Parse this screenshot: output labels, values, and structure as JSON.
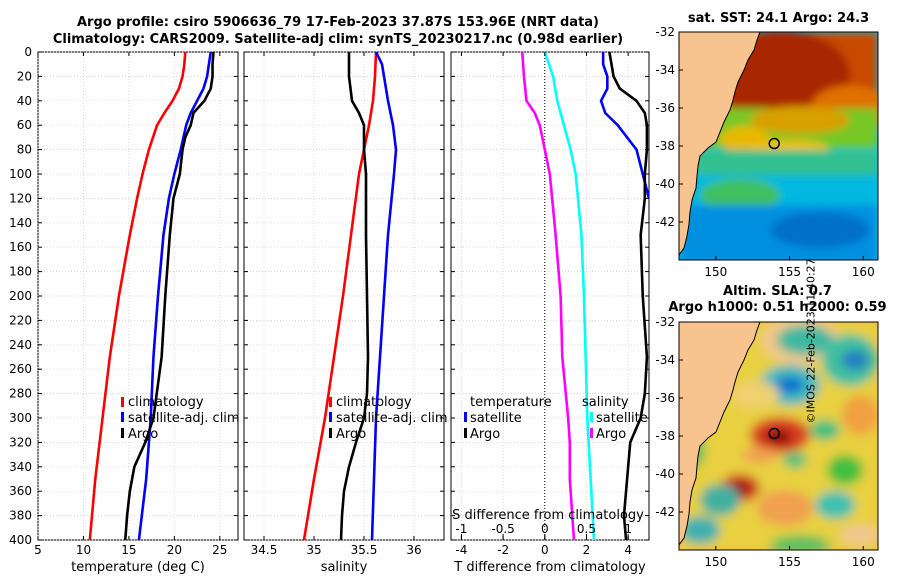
{
  "header": {
    "line1": "Argo profile: csiro 5906636_79 17-Feb-2023 37.87S 153.96E (NRT data)",
    "line2": "Climatology: CARS2009. Satellite-adj clim: synTS_20230217.nc (0.98d earlier)"
  },
  "colors": {
    "climatology": "#ff0000",
    "satellite": "#0000ff",
    "argo": "#000000",
    "salinity_clim_diff": "#ff00ff",
    "salinity_sat_diff": "#00ffff",
    "land": "#f7c48f",
    "grid": "#cccccc"
  },
  "depth_axis": {
    "min": 0,
    "max": 400,
    "ticks": [
      0,
      20,
      40,
      60,
      80,
      100,
      120,
      140,
      160,
      180,
      200,
      220,
      240,
      260,
      280,
      300,
      320,
      340,
      360,
      380,
      400
    ]
  },
  "copyright": "©IMOS 22-Feb-2023 11:40:27",
  "chart_data": [
    {
      "id": "temperature",
      "type": "line",
      "xlabel": "temperature (deg C)",
      "ylabel": "",
      "xlim": [
        5,
        27
      ],
      "xticks": [
        5,
        10,
        15,
        20,
        25
      ],
      "ylim": [
        400,
        0
      ],
      "legend": [
        "climatology",
        "satellite-adj. clim",
        "Argo"
      ],
      "legend_position": "lower-right",
      "series": [
        {
          "name": "climatology",
          "color": "#ff0000",
          "depth": [
            0,
            10,
            20,
            30,
            40,
            50,
            60,
            80,
            100,
            120,
            150,
            200,
            250,
            300,
            350,
            400
          ],
          "values": [
            21.2,
            21.1,
            20.9,
            20.5,
            19.8,
            18.9,
            18.1,
            17.2,
            16.5,
            15.9,
            15.1,
            13.9,
            12.9,
            12.1,
            11.3,
            10.7
          ]
        },
        {
          "name": "satellite-adj. clim",
          "color": "#0000ff",
          "depth": [
            0,
            10,
            20,
            30,
            40,
            50,
            60,
            80,
            100,
            120,
            150,
            200,
            250,
            300,
            350,
            400
          ],
          "values": [
            24.0,
            23.8,
            23.6,
            23.2,
            22.5,
            21.8,
            21.3,
            20.7,
            20.0,
            19.4,
            18.8,
            18.2,
            17.7,
            17.4,
            16.9,
            16.1
          ]
        },
        {
          "name": "Argo",
          "color": "#000000",
          "depth": [
            0,
            10,
            20,
            30,
            40,
            50,
            60,
            70,
            80,
            100,
            120,
            150,
            200,
            250,
            300,
            320,
            340,
            360,
            380,
            400
          ],
          "values": [
            24.3,
            24.2,
            24.2,
            24.0,
            23.3,
            22.1,
            21.8,
            21.2,
            20.9,
            20.6,
            19.9,
            19.5,
            19.0,
            18.6,
            17.7,
            16.8,
            15.6,
            15.1,
            14.8,
            14.6
          ]
        }
      ]
    },
    {
      "id": "salinity",
      "type": "line",
      "xlabel": "salinity",
      "ylabel": "",
      "xlim": [
        34.3,
        36.3
      ],
      "xticks": [
        34.5,
        35,
        35.5,
        36
      ],
      "xtick_labels": [
        "34.5",
        "35",
        "35.5",
        "36"
      ],
      "ylim": [
        400,
        0
      ],
      "legend": [
        "climatology",
        "satellite-adj. clim",
        "Argo"
      ],
      "legend_position": "lower-right",
      "series": [
        {
          "name": "climatology",
          "color": "#ff0000",
          "depth": [
            0,
            20,
            40,
            60,
            80,
            100,
            150,
            200,
            250,
            300,
            350,
            400
          ],
          "values": [
            35.62,
            35.61,
            35.59,
            35.55,
            35.5,
            35.45,
            35.37,
            35.29,
            35.2,
            35.11,
            35.0,
            34.9
          ]
        },
        {
          "name": "satellite-adj. clim",
          "color": "#0000ff",
          "depth": [
            0,
            10,
            20,
            40,
            60,
            80,
            100,
            150,
            200,
            250,
            300,
            350,
            400
          ],
          "values": [
            35.62,
            35.68,
            35.7,
            35.74,
            35.79,
            35.82,
            35.8,
            35.74,
            35.7,
            35.66,
            35.62,
            35.6,
            35.58
          ]
        },
        {
          "name": "Argo",
          "color": "#000000",
          "depth": [
            0,
            20,
            40,
            50,
            60,
            80,
            100,
            150,
            200,
            250,
            280,
            300,
            320,
            340,
            360,
            380,
            400
          ],
          "values": [
            35.35,
            35.35,
            35.38,
            35.45,
            35.5,
            35.5,
            35.52,
            35.52,
            35.53,
            35.54,
            35.53,
            35.5,
            35.42,
            35.35,
            35.3,
            35.28,
            35.27
          ]
        }
      ]
    },
    {
      "id": "differences",
      "type": "line",
      "xlabel": "T difference from climatology",
      "xlabel_top": "S difference from climatology",
      "xlim": [
        -4.5,
        5
      ],
      "xticks": [
        -4,
        -2,
        0,
        2,
        4
      ],
      "xticks_top": [
        -1,
        -0.5,
        0,
        0.5,
        1
      ],
      "xtick_labels_top": [
        "-1",
        "-0.5",
        "0",
        "0.5",
        "1"
      ],
      "ylim": [
        400,
        0
      ],
      "legend_temperature_title": "temperature",
      "legend_temperature": [
        "satellite",
        "Argo"
      ],
      "legend_salinity_title": "salinity",
      "legend_salinity": [
        "satellite",
        "Argo"
      ],
      "series": [
        {
          "name": "T satellite",
          "color": "#0000ff",
          "axis": "T",
          "depth": [
            0,
            10,
            20,
            30,
            40,
            50,
            60,
            80,
            100,
            120
          ],
          "values": [
            2.8,
            2.8,
            3.0,
            3.0,
            2.7,
            2.9,
            3.5,
            4.4,
            4.7,
            5.0
          ]
        },
        {
          "name": "T Argo",
          "color": "#000000",
          "axis": "T",
          "depth": [
            0,
            20,
            30,
            40,
            50,
            60,
            80,
            100,
            120,
            150,
            200,
            250,
            280,
            300,
            320,
            340,
            360,
            380,
            400
          ],
          "values": [
            3.1,
            3.3,
            3.6,
            4.4,
            4.8,
            4.9,
            4.9,
            4.8,
            4.8,
            4.6,
            4.7,
            4.9,
            4.8,
            4.6,
            4.1,
            4.0,
            3.9,
            3.8,
            3.9
          ]
        },
        {
          "name": "S satellite",
          "color": "#00ffff",
          "axis": "S",
          "depth": [
            0,
            20,
            40,
            60,
            80,
            100,
            150,
            200,
            250,
            300,
            350,
            400
          ],
          "values": [
            0.0,
            0.1,
            0.15,
            0.23,
            0.31,
            0.37,
            0.44,
            0.47,
            0.49,
            0.51,
            0.55,
            0.59
          ]
        },
        {
          "name": "S Argo",
          "color": "#ff00ff",
          "axis": "S",
          "depth": [
            0,
            10,
            20,
            40,
            50,
            60,
            80,
            100,
            150,
            200,
            250,
            300,
            320,
            350,
            400
          ],
          "values": [
            -0.27,
            -0.26,
            -0.25,
            -0.22,
            -0.12,
            -0.06,
            0.0,
            0.06,
            0.13,
            0.19,
            0.21,
            0.28,
            0.3,
            0.3,
            0.35
          ]
        }
      ]
    },
    {
      "id": "sst_map",
      "type": "heatmap",
      "title": "sat. SST: 24.1 Argo: 24.3",
      "xlim": [
        147.5,
        161
      ],
      "ylim": [
        -44,
        -32
      ],
      "xticks": [
        150,
        155,
        160
      ],
      "yticks": [
        -32,
        -34,
        -36,
        -38,
        -40,
        -42
      ],
      "argo_position": {
        "lon": 153.96,
        "lat": -37.87
      }
    },
    {
      "id": "sla_map",
      "type": "heatmap",
      "title_line1": "Altim. SLA: 0.7",
      "title_line2": "Argo h1000: 0.51 h2000: 0.59",
      "xlim": [
        147.5,
        161
      ],
      "ylim": [
        -44,
        -32
      ],
      "xticks": [
        150,
        155,
        160
      ],
      "yticks": [
        -32,
        -34,
        -36,
        -38,
        -40,
        -42
      ],
      "argo_position": {
        "lon": 153.96,
        "lat": -37.87
      }
    }
  ]
}
